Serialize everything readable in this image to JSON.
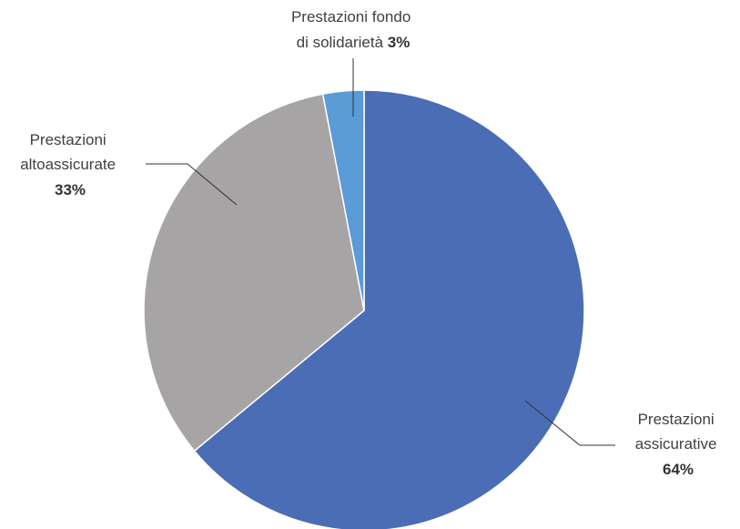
{
  "chart_data": {
    "type": "pie",
    "title": "",
    "legend": "none",
    "slices": [
      {
        "key": "assicurative",
        "label_lines": [
          "Prestazioni",
          "assicurative"
        ],
        "percent_label": "64%",
        "value": 64,
        "color": "#4a6db5"
      },
      {
        "key": "altoassicurate",
        "label_lines": [
          "Prestazioni",
          "altoassicurate"
        ],
        "percent_label": "33%",
        "value": 33,
        "color": "#a6a4a4"
      },
      {
        "key": "solidarieta",
        "label_lines": [
          "Prestazioni fondo",
          "di solidarietà"
        ],
        "percent_label": "3%",
        "value": 3,
        "color": "#5a9bd8"
      }
    ]
  }
}
